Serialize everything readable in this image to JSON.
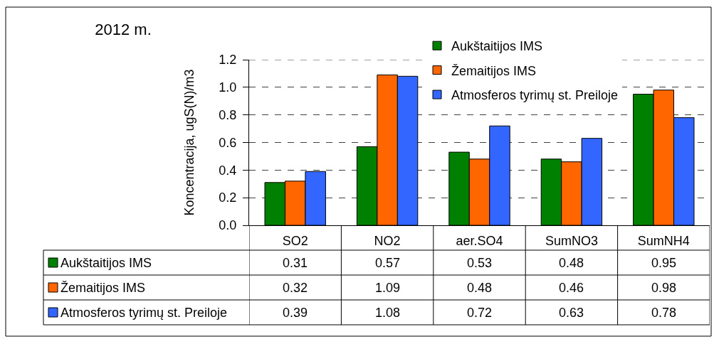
{
  "chart_data": {
    "type": "bar",
    "title": "2012 m.",
    "ylabel": "Koncentracija, ugS(N)/m3",
    "categories": [
      "SO2",
      "NO2",
      "aer.SO4",
      "SumNO3",
      "SumNH4"
    ],
    "series": [
      {
        "name": "Aukštaitijos IMS",
        "color": "#008000",
        "values": [
          0.31,
          0.57,
          0.53,
          0.48,
          0.95
        ]
      },
      {
        "name": "Žemaitijos IMS",
        "color": "#ff6600",
        "values": [
          0.32,
          1.09,
          0.48,
          0.46,
          0.98
        ]
      },
      {
        "name": "Atmosferos tyrimų st. Preiloje",
        "color": "#3366ff",
        "values": [
          0.39,
          1.08,
          0.72,
          0.63,
          0.78
        ]
      }
    ],
    "ylim": [
      0,
      1.2
    ],
    "yticks": [
      {
        "value": 0,
        "label": "0.0"
      },
      0.2,
      0.4,
      0.6,
      0.8,
      {
        "value": 1.0,
        "label": "1.0"
      },
      1.2
    ],
    "grid": "y",
    "legend": "top right",
    "data_labels": true
  }
}
